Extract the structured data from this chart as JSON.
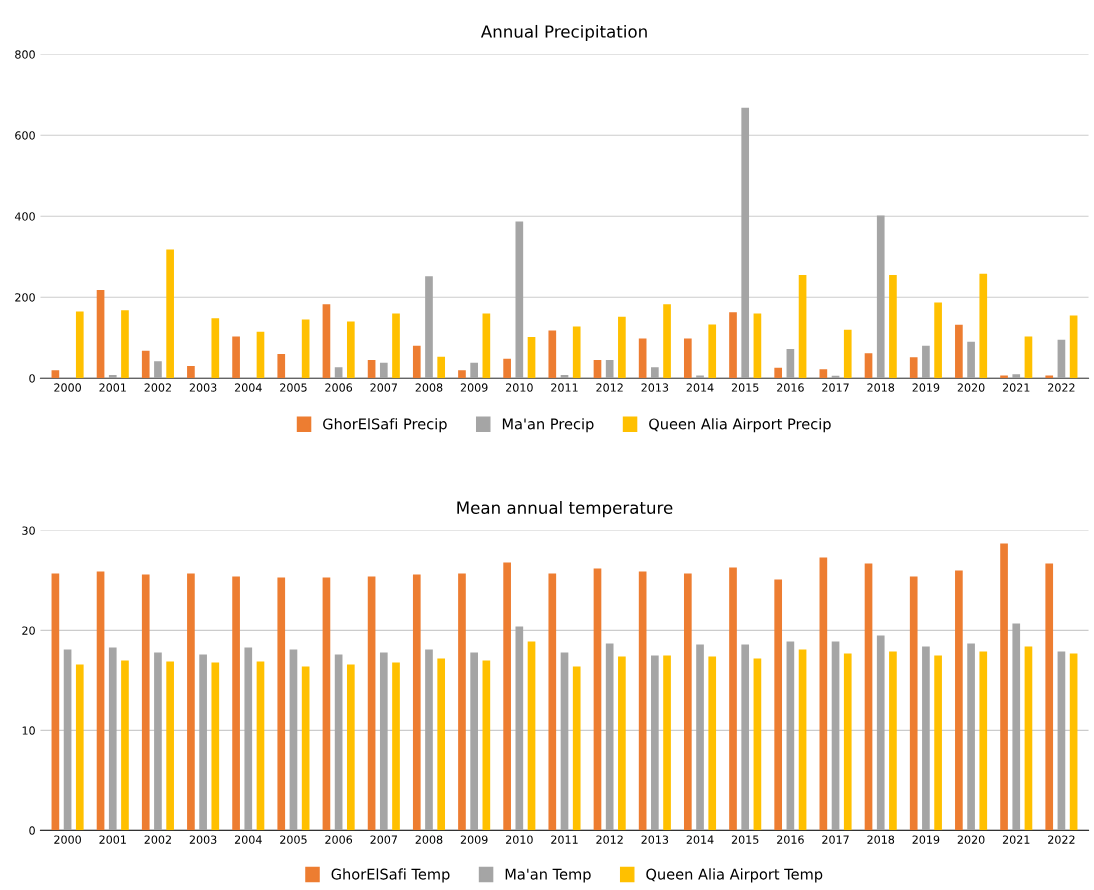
{
  "chart_data": [
    {
      "type": "bar",
      "title": "Annual Precipitation",
      "categories": [
        "2000",
        "2001",
        "2002",
        "2003",
        "2004",
        "2005",
        "2006",
        "2007",
        "2008",
        "2009",
        "2010",
        "2011",
        "2012",
        "2013",
        "2014",
        "2015",
        "2016",
        "2017",
        "2018",
        "2019",
        "2020",
        "2021",
        "2022"
      ],
      "series": [
        {
          "name": "GhorElSafi Precip",
          "color": "#ed7d31",
          "values": [
            20,
            218,
            68,
            30,
            103,
            60,
            183,
            45,
            80,
            20,
            48,
            118,
            45,
            98,
            98,
            163,
            26,
            22,
            62,
            52,
            132,
            7,
            7
          ]
        },
        {
          "name": "Ma'an Precip",
          "color": "#a5a5a5",
          "values": [
            0,
            8,
            42,
            0,
            0,
            0,
            27,
            38,
            252,
            38,
            387,
            8,
            45,
            27,
            7,
            668,
            72,
            6,
            402,
            80,
            90,
            10,
            95
          ]
        },
        {
          "name": "Queen Alia Airport Precip",
          "color": "#ffc000",
          "values": [
            165,
            168,
            318,
            148,
            115,
            145,
            140,
            160,
            53,
            160,
            102,
            128,
            152,
            183,
            133,
            160,
            255,
            120,
            255,
            187,
            258,
            103,
            155
          ]
        }
      ],
      "ylim": [
        0,
        800
      ],
      "yticks": [
        0,
        200,
        400,
        600,
        800
      ],
      "grid": "y",
      "legend": "bottom"
    },
    {
      "type": "bar",
      "title": "Mean annual temperature",
      "categories": [
        "2000",
        "2001",
        "2002",
        "2003",
        "2004",
        "2005",
        "2006",
        "2007",
        "2008",
        "2009",
        "2010",
        "2011",
        "2012",
        "2013",
        "2014",
        "2015",
        "2016",
        "2017",
        "2018",
        "2019",
        "2020",
        "2021",
        "2022"
      ],
      "series": [
        {
          "name": "GhorElSafi Temp",
          "color": "#ed7d31",
          "values": [
            25.7,
            25.9,
            25.6,
            25.7,
            25.4,
            25.3,
            25.3,
            25.4,
            25.6,
            25.7,
            26.8,
            25.7,
            26.2,
            25.9,
            25.7,
            26.3,
            25.1,
            27.3,
            26.7,
            25.4,
            26.0,
            28.7,
            26.7
          ]
        },
        {
          "name": "Ma'an Temp",
          "color": "#a5a5a5",
          "values": [
            18.1,
            18.3,
            17.8,
            17.6,
            18.3,
            18.1,
            17.6,
            17.8,
            18.1,
            17.8,
            20.4,
            17.8,
            18.7,
            17.5,
            18.6,
            18.6,
            18.9,
            18.9,
            19.5,
            18.4,
            18.7,
            20.7,
            17.9
          ]
        },
        {
          "name": "Queen Alia Airport Temp",
          "color": "#ffc000",
          "values": [
            16.6,
            17.0,
            16.9,
            16.8,
            16.9,
            16.4,
            16.6,
            16.8,
            17.2,
            17.0,
            18.9,
            16.4,
            17.4,
            17.5,
            17.4,
            17.2,
            18.1,
            17.7,
            17.9,
            17.5,
            17.9,
            18.4,
            17.7
          ]
        }
      ],
      "ylim": [
        0,
        30
      ],
      "yticks": [
        0,
        10,
        20,
        30
      ],
      "grid": "y",
      "legend": "bottom"
    }
  ]
}
